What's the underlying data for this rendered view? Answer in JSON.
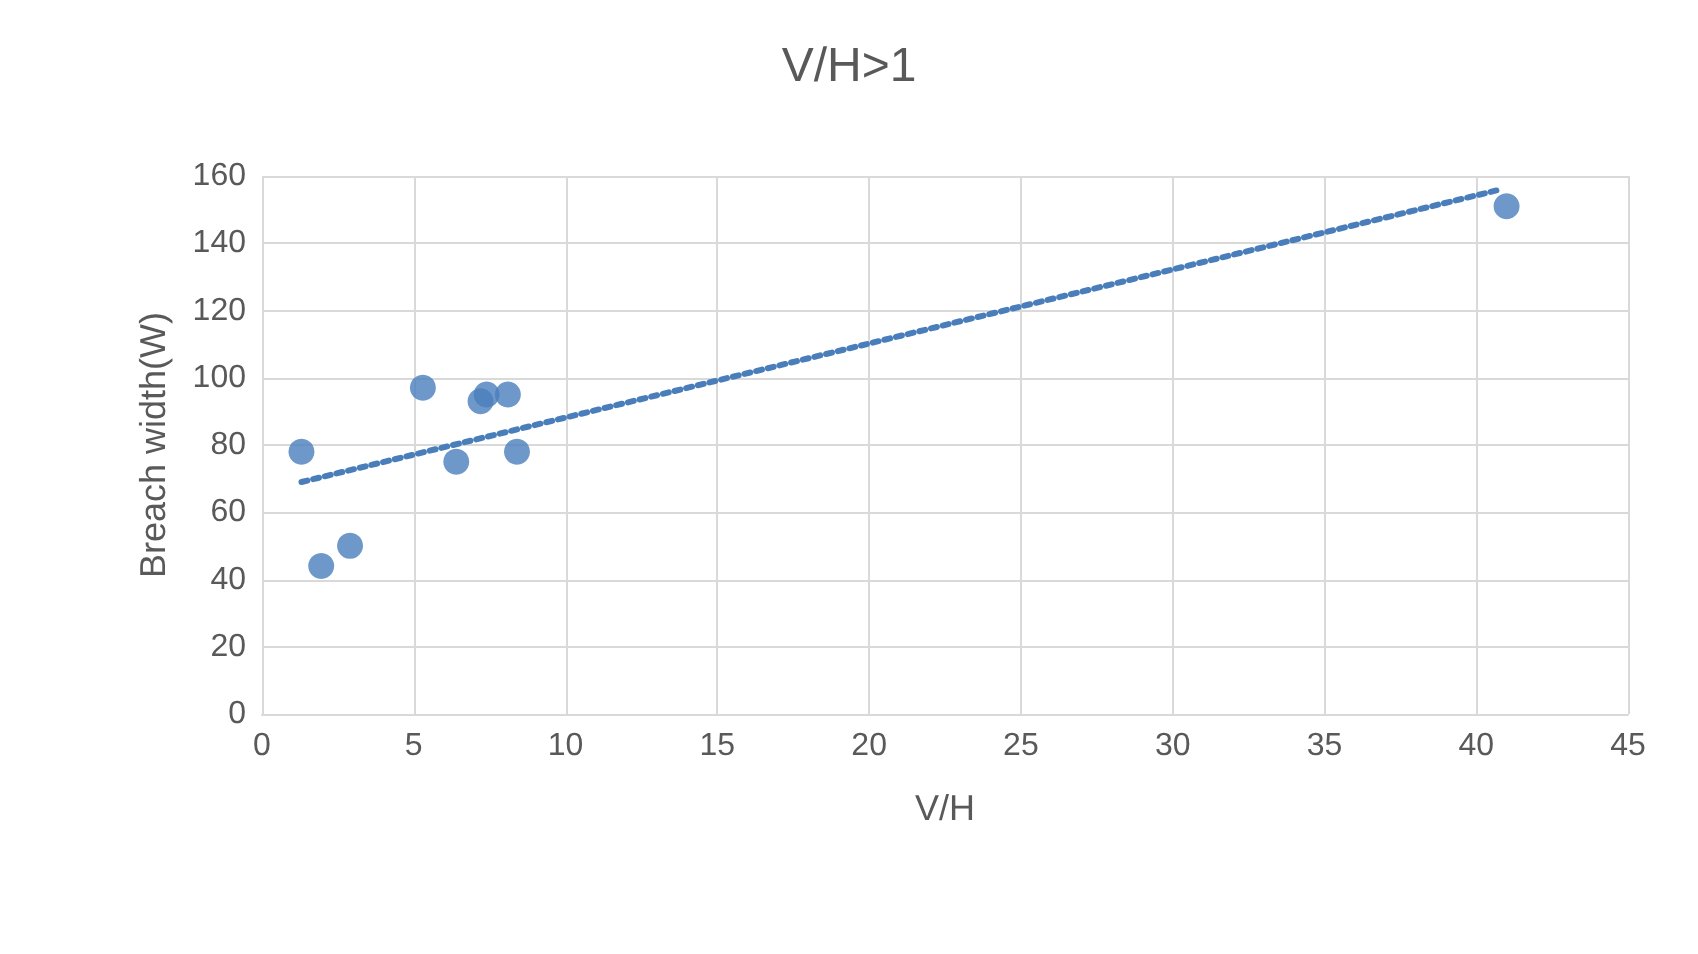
{
  "chart_data": {
    "type": "scatter",
    "title": "V/H>1",
    "xlabel": "V/H",
    "ylabel": "Breach width(W)",
    "xlim": [
      0,
      45
    ],
    "xticks": [
      0,
      5,
      10,
      15,
      20,
      25,
      30,
      35,
      40,
      45
    ],
    "ylim": [
      0,
      160
    ],
    "yticks": [
      0,
      20,
      40,
      60,
      80,
      100,
      120,
      140,
      160
    ],
    "grid": true,
    "series": [
      {
        "color": "#4a7ebb",
        "marker": "circle",
        "x": [
          1.3,
          1.95,
          2.9,
          5.3,
          6.4,
          7.2,
          7.4,
          8.1,
          8.4,
          41
        ],
        "values": [
          78,
          44,
          50,
          97,
          75,
          93,
          95,
          95,
          78,
          151
        ]
      },
      {
        "type": "line",
        "color": "#4a7ebb",
        "marker": "none",
        "line_style": "dotted",
        "x": [
          1.3,
          40.8
        ],
        "values": [
          69,
          156
        ]
      }
    ]
  }
}
